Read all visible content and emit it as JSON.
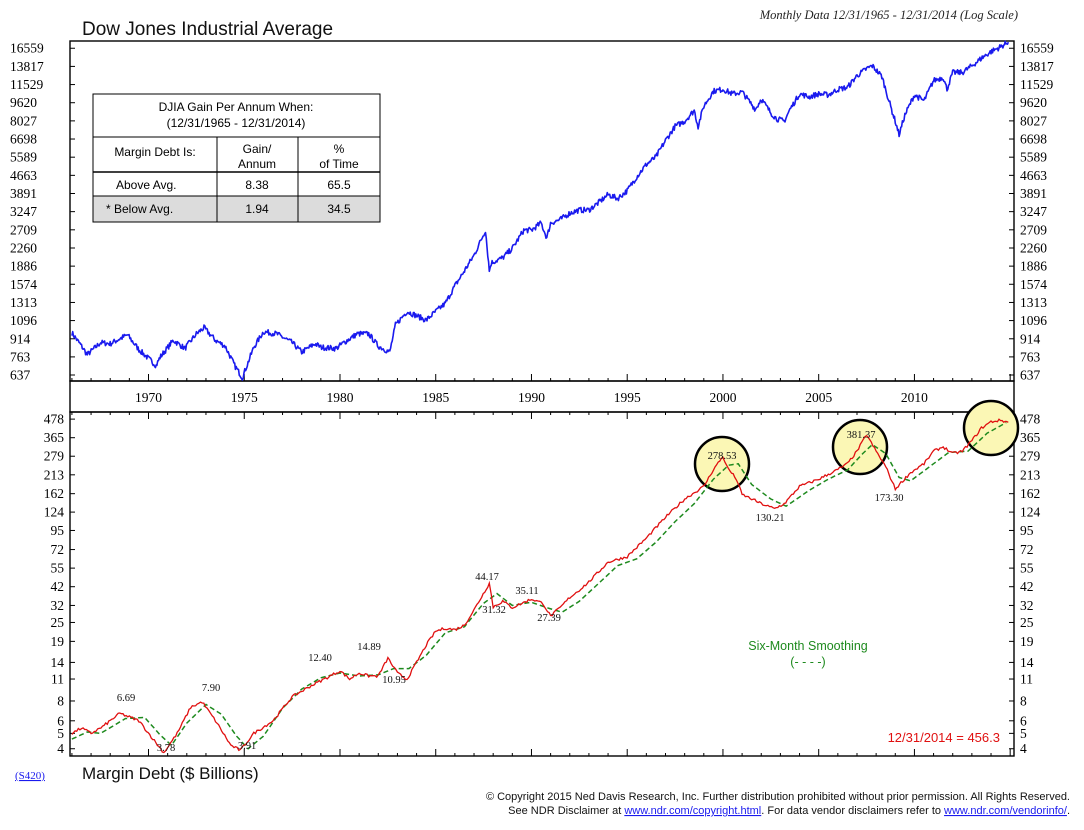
{
  "header": {
    "title": "Dow Jones Industrial Average",
    "subtitle": "Monthly Data 12/31/1965 - 12/31/2014 (Log Scale)"
  },
  "footer": {
    "code": "(S420)",
    "lower_title": "Margin Debt ($ Billions)",
    "copyright": "© Copyright 2015 Ned Davis Research, Inc.  Further distribution prohibited without prior permission.  All Rights Reserved.",
    "disclaimer_prefix": "See NDR Disclaimer at ",
    "disclaimer_link1": "www.ndr.com/copyright.html",
    "disclaimer_mid": ". For data vendor disclaimers refer to ",
    "disclaimer_link2": "www.ndr.com/vendorinfo/",
    "disclaimer_suffix": "."
  },
  "colors": {
    "djia": "#1a1aee",
    "margin": "#e01010",
    "smoothing": "#1e8a1e",
    "highlight": "#fbf7b5",
    "shade": "#dcdcdc"
  },
  "stats_table": {
    "title_line1": "DJIA Gain Per Annum When:",
    "title_line2": "(12/31/1965 - 12/31/2014)",
    "header_col1": "Margin Debt Is:",
    "header_col2_l1": "Gain/",
    "header_col2_l2": "Annum",
    "header_col3_l1": "%",
    "header_col3_l2": "of Time",
    "rows": [
      {
        "label": "Above Avg.",
        "gain": "8.38",
        "time": "65.5"
      },
      {
        "label": "* Below Avg.",
        "gain": "1.94",
        "time": "34.5"
      }
    ]
  },
  "chart_data": [
    {
      "type": "line",
      "title": "Dow Jones Industrial Average",
      "scale": "log",
      "ylim": [
        600,
        17800
      ],
      "y_ticks": [
        "16559",
        "13817",
        "11529",
        "9620",
        "8027",
        "6698",
        "5589",
        "4663",
        "3891",
        "3247",
        "2709",
        "2260",
        "1886",
        "1574",
        "1313",
        "1096",
        "914",
        "763",
        "637"
      ],
      "x_ticks": [
        "1970",
        "1975",
        "1980",
        "1985",
        "1990",
        "1995",
        "2000",
        "2005",
        "2010"
      ],
      "xlim": [
        1965.9,
        2015.2
      ],
      "series": [
        {
          "name": "DJIA",
          "x": [
            1966.0,
            1966.5,
            1966.8,
            1967.5,
            1968.0,
            1968.9,
            1969.5,
            1970.4,
            1970.6,
            1971.3,
            1971.9,
            1972.5,
            1972.9,
            1973.5,
            1974.0,
            1974.5,
            1974.9,
            1975.5,
            1976.0,
            1976.7,
            1977.5,
            1978.0,
            1978.7,
            1979.0,
            1979.8,
            1980.2,
            1980.9,
            1981.5,
            1982.0,
            1982.6,
            1982.9,
            1983.5,
            1984.0,
            1984.5,
            1985.0,
            1985.5,
            1986.0,
            1986.5,
            1987.0,
            1987.6,
            1987.8,
            1987.9,
            1988.5,
            1989.0,
            1989.6,
            1990.0,
            1990.5,
            1990.8,
            1991.0,
            1991.5,
            1992.0,
            1992.5,
            1993.0,
            1993.5,
            1994.0,
            1994.5,
            1995.0,
            1995.5,
            1996.0,
            1996.5,
            1997.0,
            1997.5,
            1998.0,
            1998.5,
            1998.7,
            1999.0,
            1999.5,
            2000.0,
            2000.5,
            2001.0,
            2001.7,
            2002.0,
            2002.5,
            2002.8,
            2003.2,
            2003.5,
            2004.0,
            2004.5,
            2005.0,
            2005.5,
            2006.0,
            2006.5,
            2007.0,
            2007.5,
            2007.8,
            2008.3,
            2008.8,
            2009.0,
            2009.2,
            2009.5,
            2010.0,
            2010.5,
            2011.0,
            2011.5,
            2011.7,
            2012.0,
            2012.5,
            2013.0,
            2013.5,
            2014.0,
            2014.5,
            2014.9
          ],
          "y": [
            970,
            850,
            780,
            880,
            870,
            950,
            820,
            700,
            760,
            900,
            830,
            960,
            1020,
            900,
            850,
            700,
            620,
            840,
            980,
            960,
            880,
            800,
            870,
            840,
            830,
            880,
            960,
            960,
            850,
            800,
            1050,
            1200,
            1150,
            1100,
            1200,
            1300,
            1550,
            1800,
            2100,
            2700,
            1800,
            1950,
            2050,
            2250,
            2700,
            2700,
            2900,
            2500,
            2900,
            3000,
            3200,
            3300,
            3300,
            3550,
            3850,
            3700,
            4000,
            4600,
            5200,
            5600,
            6600,
            7600,
            8000,
            8900,
            7600,
            9300,
            10800,
            11000,
            10500,
            10700,
            9000,
            10000,
            8700,
            8200,
            8000,
            9000,
            10500,
            10200,
            10500,
            10400,
            11000,
            11200,
            12600,
            13500,
            13900,
            12500,
            9000,
            8000,
            7000,
            8500,
            10400,
            9800,
            12000,
            12400,
            11000,
            13000,
            13000,
            13900,
            15000,
            16000,
            16800,
            17600
          ]
        }
      ]
    },
    {
      "type": "line",
      "title": "Margin Debt ($ Billions)",
      "scale": "log",
      "ylim": [
        3.6,
        530
      ],
      "y_ticks": [
        "478",
        "365",
        "279",
        "213",
        "162",
        "124",
        "95",
        "72",
        "55",
        "42",
        "32",
        "25",
        "19",
        "14",
        "11",
        "8",
        "6",
        "5",
        "4"
      ],
      "x_ticks": [
        "1970",
        "1975",
        "1980",
        "1985",
        "1990",
        "1995",
        "2000",
        "2005",
        "2010"
      ],
      "xlim": [
        1965.9,
        2015.2
      ],
      "series": [
        {
          "name": "Margin Debt",
          "x": [
            1966.0,
            1966.5,
            1967.0,
            1967.6,
            1968.5,
            1969.5,
            1970.3,
            1970.8,
            1971.5,
            1972.2,
            1972.8,
            1973.5,
            1974.3,
            1974.8,
            1975.5,
            1976.5,
            1977.5,
            1978.5,
            1979.5,
            1980.0,
            1980.5,
            1981.0,
            1981.5,
            1982.0,
            1982.5,
            1983.0,
            1983.5,
            1984.0,
            1984.5,
            1985.0,
            1985.5,
            1986.0,
            1986.5,
            1987.0,
            1987.8,
            1988.0,
            1988.5,
            1989.0,
            1989.5,
            1990.0,
            1990.6,
            1991.0,
            1991.5,
            1992.0,
            1992.5,
            1993.0,
            1993.5,
            1994.0,
            1995.0,
            1996.0,
            1997.0,
            1998.0,
            1999.0,
            1999.5,
            2000.0,
            2000.2,
            2000.7,
            2001.0,
            2001.5,
            2002.0,
            2002.7,
            2003.2,
            2004.0,
            2005.0,
            2006.0,
            2006.5,
            2007.0,
            2007.5,
            2008.0,
            2008.5,
            2009.0,
            2009.3,
            2009.8,
            2010.5,
            2011.0,
            2011.5,
            2012.0,
            2012.5,
            2013.0,
            2013.5,
            2014.0,
            2014.5,
            2014.9
          ],
          "y": [
            5.0,
            5.4,
            5.0,
            5.5,
            6.69,
            6.0,
            4.5,
            3.78,
            5.0,
            7.3,
            7.9,
            6.0,
            4.2,
            3.91,
            5.0,
            6.0,
            8.5,
            10.0,
            11.5,
            12.4,
            11.0,
            12.0,
            11.5,
            11.5,
            14.89,
            12.0,
            10.95,
            14.0,
            18.0,
            22.0,
            23.0,
            22.5,
            24.0,
            30.0,
            44.17,
            31.32,
            34.0,
            31.0,
            33.0,
            35.11,
            33.0,
            27.39,
            31.0,
            36.0,
            40.0,
            45.0,
            52.0,
            60.0,
            65.0,
            85.0,
            115.0,
            150.0,
            180.0,
            230.0,
            278.53,
            240.0,
            200.0,
            160.0,
            150.0,
            140.0,
            130.21,
            140.0,
            180.0,
            200.0,
            230.0,
            250.0,
            300.0,
            381.37,
            300.0,
            240.0,
            173.3,
            190.0,
            220.0,
            250.0,
            300.0,
            320.0,
            290.0,
            300.0,
            350.0,
            420.0,
            460.0,
            470.0,
            456.3
          ]
        },
        {
          "name": "Six-Month Smoothing",
          "x": [
            1966.0,
            1966.8,
            1967.5,
            1968.8,
            1969.8,
            1970.6,
            1971.2,
            1972.0,
            1973.0,
            1973.8,
            1974.6,
            1975.2,
            1976.0,
            1977.0,
            1978.0,
            1979.0,
            1980.0,
            1981.0,
            1982.0,
            1982.8,
            1983.6,
            1984.5,
            1985.5,
            1986.5,
            1987.5,
            1988.2,
            1989.0,
            1990.0,
            1990.8,
            1991.6,
            1992.5,
            1993.5,
            1994.5,
            1995.5,
            1996.5,
            1997.5,
            1998.5,
            1999.5,
            2000.3,
            2000.8,
            2001.5,
            2002.5,
            2003.3,
            2004.5,
            2005.5,
            2006.5,
            2007.3,
            2007.8,
            2008.5,
            2009.2,
            2009.8,
            2010.8,
            2011.8,
            2012.8,
            2013.8,
            2014.8
          ],
          "y": [
            4.6,
            5.1,
            5.0,
            6.2,
            6.3,
            4.9,
            4.2,
            5.8,
            7.6,
            6.6,
            4.8,
            4.0,
            4.8,
            7.2,
            9.5,
            11.2,
            12.0,
            11.5,
            11.7,
            12.8,
            12.8,
            15.5,
            21.5,
            23.5,
            33.0,
            38.0,
            32.0,
            33.5,
            31.0,
            29.0,
            34.0,
            44.0,
            57.0,
            63.0,
            80.0,
            108.0,
            140.0,
            200.0,
            245.0,
            250.0,
            185.0,
            150.0,
            135.0,
            170.0,
            200.0,
            228.0,
            290.0,
            330.0,
            290.0,
            205.0,
            195.0,
            240.0,
            295.0,
            300.0,
            390.0,
            455.0
          ]
        }
      ],
      "annotations": [
        "6.69",
        "3.78",
        "7.90",
        "3.91",
        "12.40",
        "14.89",
        "10.95",
        "44.17",
        "31.32",
        "35.11",
        "27.39",
        "278.53",
        "130.21",
        "381.37",
        "173.30"
      ],
      "legend": {
        "label": "Six-Month Smoothing",
        "sample": "(- - - -)"
      },
      "callout": "12/31/2014 = 456.3"
    }
  ]
}
